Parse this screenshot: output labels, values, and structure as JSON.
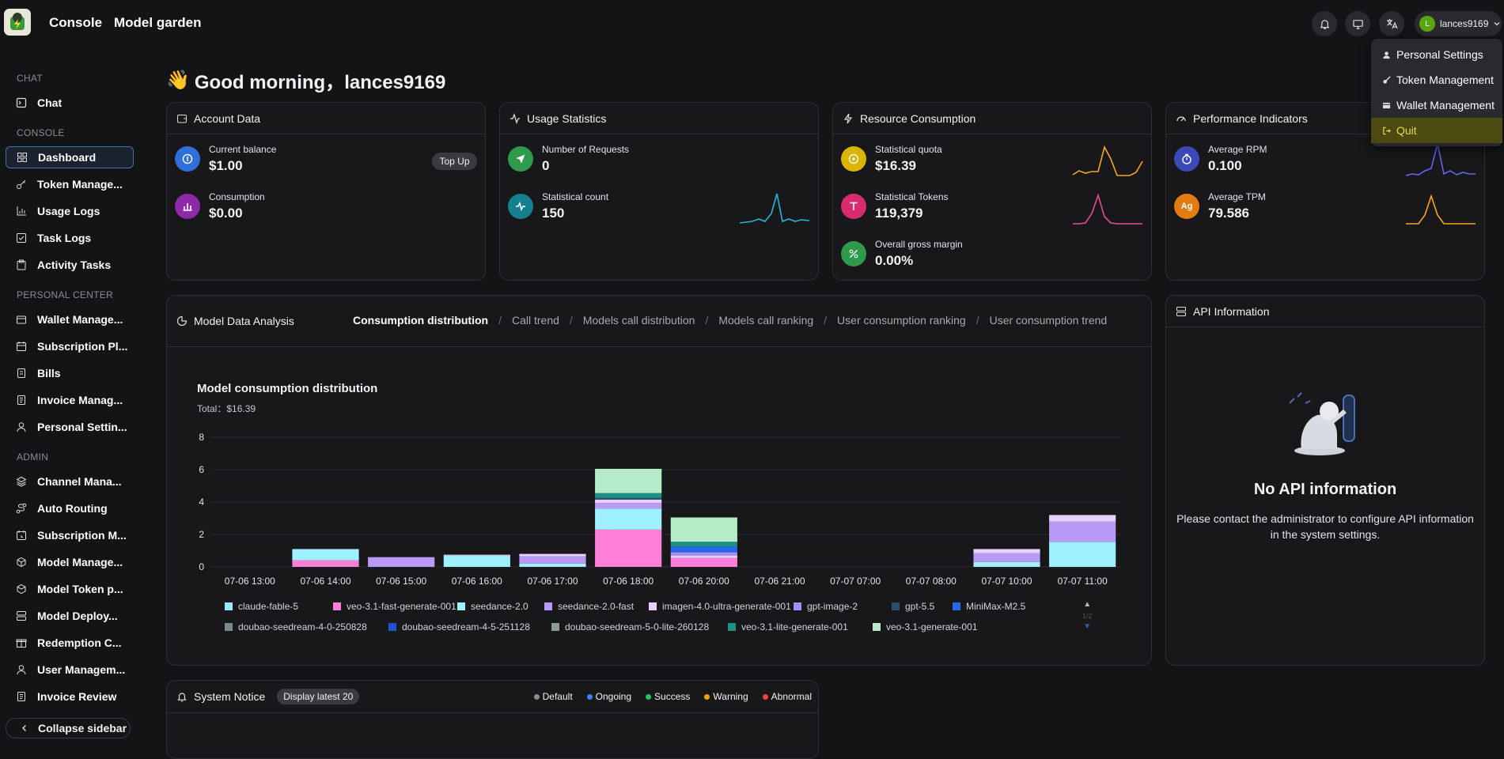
{
  "header": {
    "nav": [
      "Console",
      "Model garden"
    ],
    "username": "lances9169",
    "avatar_letter": "L"
  },
  "user_menu": [
    "Personal Settings",
    "Token Management",
    "Wallet Management",
    "Quit"
  ],
  "sidebar": {
    "sections": [
      {
        "title": "CHAT",
        "items": [
          "Chat"
        ]
      },
      {
        "title": "CONSOLE",
        "items": [
          "Dashboard",
          "Token Manage...",
          "Usage Logs",
          "Task Logs",
          "Activity Tasks"
        ]
      },
      {
        "title": "PERSONAL CENTER",
        "items": [
          "Wallet Manage...",
          "Subscription Pl...",
          "Bills",
          "Invoice Manag...",
          "Personal Settin..."
        ]
      },
      {
        "title": "ADMIN",
        "items": [
          "Channel Mana...",
          "Auto Routing",
          "Subscription M...",
          "Model Manage...",
          "Model Token p...",
          "Model Deploy...",
          "Redemption C...",
          "User Managem...",
          "Invoice Review"
        ]
      }
    ],
    "collapse": "Collapse sidebar"
  },
  "greeting": {
    "emoji": "👋",
    "text": "Good morning，lances9169"
  },
  "account": {
    "title": "Account Data",
    "balance_label": "Current balance",
    "balance": "$1.00",
    "topup": "Top Up",
    "consumption_label": "Consumption",
    "consumption": "$0.00"
  },
  "usage": {
    "title": "Usage Statistics",
    "requests_label": "Number of Requests",
    "requests": "0",
    "count_label": "Statistical count",
    "count": "150"
  },
  "resource": {
    "title": "Resource Consumption",
    "quota_label": "Statistical quota",
    "quota": "$16.39",
    "tokens_label": "Statistical Tokens",
    "tokens": "119,379",
    "margin_label": "Overall gross margin",
    "margin": "0.00%"
  },
  "performance": {
    "title": "Performance Indicators",
    "rpm_label": "Average RPM",
    "rpm": "0.100",
    "tpm_label": "Average TPM",
    "tpm": "79.586"
  },
  "analysis": {
    "title": "Model Data Analysis",
    "tabs": [
      "Consumption distribution",
      "Call trend",
      "Models call distribution",
      "Models call ranking",
      "User consumption ranking",
      "User consumption trend"
    ],
    "active_tab": 0
  },
  "chart_data": {
    "type": "bar",
    "title": "Model consumption distribution",
    "subtitle": "Total：$16.39",
    "ylim": [
      0,
      8
    ],
    "yticks": [
      0,
      2,
      4,
      6,
      8
    ],
    "categories": [
      "07-06 13:00",
      "07-06 14:00",
      "07-06 15:00",
      "07-06 16:00",
      "07-06 17:00",
      "07-06 18:00",
      "07-06 20:00",
      "07-06 21:00",
      "07-07 07:00",
      "07-07 08:00",
      "07-07 10:00",
      "07-07 11:00"
    ],
    "series": [
      {
        "name": "claude-fable-5",
        "color": "#9be8ff",
        "values": [
          0,
          0,
          0,
          0,
          0,
          0,
          0,
          0,
          0,
          0,
          0,
          0
        ]
      },
      {
        "name": "veo-3.1-fast-generate-001",
        "color": "#ff7ed8",
        "values": [
          0,
          0.4,
          0,
          0,
          0,
          2.3,
          0.55,
          0,
          0,
          0,
          0,
          0
        ]
      },
      {
        "name": "seedance-2.0",
        "color": "#9ef0ff",
        "values": [
          0,
          0.7,
          0,
          0.7,
          0.2,
          1.3,
          0,
          0,
          0,
          0,
          0.3,
          1.55
        ]
      },
      {
        "name": "seedance-2.0-fast",
        "color": "#b99bf5",
        "values": [
          0,
          0,
          0.6,
          0,
          0.45,
          0.35,
          0,
          0,
          0,
          0,
          0.55,
          1.25
        ]
      },
      {
        "name": "imagen-4.0-ultra-generate-001",
        "color": "#e7d2ff",
        "values": [
          0,
          0,
          0,
          0.05,
          0.15,
          0.2,
          0.15,
          0,
          0,
          0,
          0.25,
          0.4
        ]
      },
      {
        "name": "gpt-image-2",
        "color": "#a98df0",
        "values": [
          0,
          0,
          0,
          0,
          0,
          0,
          0.2,
          0,
          0,
          0,
          0,
          0
        ]
      },
      {
        "name": "gpt-5.5",
        "color": "#2f4f6e",
        "values": [
          0,
          0,
          0,
          0,
          0,
          0.1,
          0,
          0,
          0,
          0,
          0,
          0
        ]
      },
      {
        "name": "MiniMax-M2.5",
        "color": "#2668e6",
        "values": [
          0,
          0,
          0,
          0,
          0,
          0,
          0.35,
          0,
          0,
          0,
          0,
          0
        ]
      },
      {
        "name": "doubao-seedream-4-0-250828",
        "color": "#7a8a8a",
        "values": [
          0,
          0,
          0,
          0,
          0,
          0,
          0,
          0,
          0,
          0,
          0,
          0
        ]
      },
      {
        "name": "doubao-seedream-4-5-251128",
        "color": "#1c54d6",
        "values": [
          0,
          0,
          0,
          0,
          0,
          0,
          0,
          0,
          0,
          0,
          0,
          0
        ]
      },
      {
        "name": "doubao-seedream-5-0-lite-260128",
        "color": "#8e9a96",
        "values": [
          0,
          0,
          0,
          0,
          0,
          0,
          0,
          0,
          0,
          0,
          0,
          0
        ]
      },
      {
        "name": "veo-3.1-lite-generate-001",
        "color": "#1e8f84",
        "values": [
          0,
          0,
          0,
          0,
          0,
          0.3,
          0.3,
          0,
          0,
          0,
          0,
          0
        ]
      },
      {
        "name": "veo-3.1-generate-001",
        "color": "#b5ebc7",
        "values": [
          0,
          0,
          0,
          0,
          0,
          1.5,
          1.5,
          0,
          0,
          0,
          0,
          0
        ]
      }
    ],
    "legend_position": "bottom",
    "legend_page": "1/2"
  },
  "api": {
    "title": "API Information",
    "empty_title": "No API information",
    "empty_text": "Please contact the administrator to configure API information in the system settings."
  },
  "notice": {
    "title": "System Notice",
    "badge": "Display latest 20",
    "statuses": [
      {
        "label": "Default",
        "color": "#8a8a92"
      },
      {
        "label": "Ongoing",
        "color": "#3b82f6"
      },
      {
        "label": "Success",
        "color": "#22c55e"
      },
      {
        "label": "Warning",
        "color": "#f59e0b"
      },
      {
        "label": "Abnormal",
        "color": "#ef4444"
      }
    ]
  },
  "colors": {
    "accent_blue": "#2f6fd6",
    "accent_yellow": "#e6d84a",
    "sparkline_cyan": "#22b8d8",
    "sparkline_orange": "#f5a623",
    "sparkline_pink": "#e84d8a",
    "sparkline_blue": "#6366f1"
  }
}
